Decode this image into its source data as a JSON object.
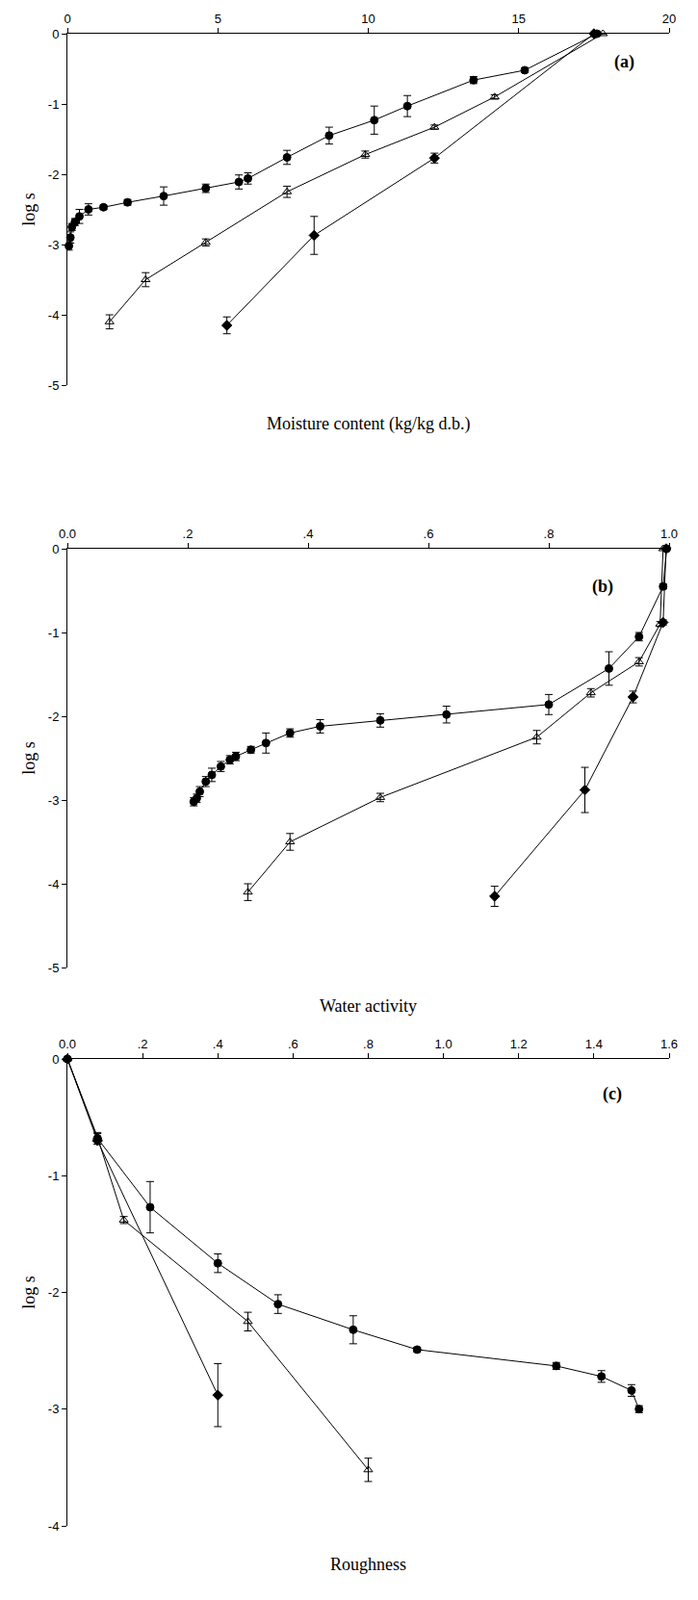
{
  "chart_data": [
    {
      "type": "line",
      "panel": "(a)",
      "xlabel": "Moisture content (kg/kg d.b.)",
      "ylabel": "log s",
      "xlim": [
        0,
        20
      ],
      "xticks": [
        0,
        5,
        10,
        15,
        20
      ],
      "ylim": [
        -5,
        0
      ],
      "yticks": [
        0,
        -1,
        -2,
        -3,
        -4,
        -5
      ],
      "series": [
        {
          "color": "#000000",
          "marker": "circle",
          "x": [
            17.6,
            15.2,
            13.5,
            11.3,
            10.2,
            8.7,
            7.3,
            6.0,
            5.7,
            4.6,
            3.2,
            2.0,
            1.2,
            0.7,
            0.4,
            0.25,
            0.15,
            0.1,
            0.05
          ],
          "values": [
            0,
            -0.52,
            -0.66,
            -1.03,
            -1.23,
            -1.45,
            -1.76,
            -2.06,
            -2.11,
            -2.2,
            -2.31,
            -2.4,
            -2.47,
            -2.5,
            -2.6,
            -2.68,
            -2.75,
            -2.9,
            -3.02
          ],
          "error": [
            0,
            0.03,
            0.05,
            0.15,
            0.2,
            0.12,
            0.1,
            0.08,
            0.1,
            0.06,
            0.13,
            0.04,
            0.03,
            0.08,
            0.1,
            0.05,
            0.05,
            0.08,
            0.06
          ]
        },
        {
          "color": "#000000",
          "marker": "triangle-open",
          "x": [
            17.8,
            14.2,
            12.2,
            9.9,
            7.3,
            4.6,
            2.6,
            1.4
          ],
          "values": [
            0,
            -0.9,
            -1.33,
            -1.72,
            -2.25,
            -2.97,
            -3.5,
            -4.1
          ],
          "error": [
            0,
            0.03,
            0.03,
            0.05,
            0.08,
            0.05,
            0.1,
            0.1
          ]
        },
        {
          "color": "#000000",
          "marker": "diamond",
          "x": [
            17.5,
            12.2,
            8.2,
            5.3
          ],
          "values": [
            0,
            -1.77,
            -2.87,
            -4.15
          ],
          "error": [
            0,
            0.07,
            0.27,
            0.12
          ]
        }
      ]
    },
    {
      "type": "line",
      "panel": "(b)",
      "xlabel": "Water activity",
      "ylabel": "log s",
      "xlim": [
        0,
        1
      ],
      "xticks": [
        {
          "value": 0,
          "label": "0.0"
        },
        {
          "value": 0.2,
          "label": ".2"
        },
        {
          "value": 0.4,
          "label": ".4"
        },
        {
          "value": 0.6,
          "label": ".6"
        },
        {
          "value": 0.8,
          "label": ".8"
        },
        {
          "value": 1,
          "label": "1.0"
        }
      ],
      "ylim": [
        -5,
        0
      ],
      "yticks": [
        0,
        -1,
        -2,
        -3,
        -4,
        -5
      ],
      "series": [
        {
          "color": "#000000",
          "marker": "circle",
          "x": [
            0.996,
            0.99,
            0.95,
            0.9,
            0.8,
            0.63,
            0.52,
            0.42,
            0.37,
            0.33,
            0.305,
            0.28,
            0.27,
            0.255,
            0.24,
            0.23,
            0.22,
            0.215,
            0.21
          ],
          "values": [
            0,
            -0.45,
            -1.05,
            -1.43,
            -1.86,
            -1.98,
            -2.05,
            -2.12,
            -2.2,
            -2.32,
            -2.4,
            -2.48,
            -2.52,
            -2.6,
            -2.7,
            -2.78,
            -2.9,
            -2.98,
            -3.02
          ],
          "error": [
            0,
            0.03,
            0.05,
            0.2,
            0.12,
            0.1,
            0.08,
            0.08,
            0.05,
            0.12,
            0.04,
            0.05,
            0.05,
            0.06,
            0.08,
            0.06,
            0.06,
            0.05,
            0.05
          ]
        },
        {
          "color": "#000000",
          "marker": "triangle-open",
          "x": [
            0.99,
            0.985,
            0.95,
            0.87,
            0.78,
            0.52,
            0.37,
            0.3
          ],
          "values": [
            0,
            -0.9,
            -1.35,
            -1.72,
            -2.25,
            -2.97,
            -3.5,
            -4.1
          ],
          "error": [
            0,
            0.03,
            0.05,
            0.05,
            0.08,
            0.05,
            0.1,
            0.1
          ]
        },
        {
          "color": "#000000",
          "marker": "diamond",
          "x": [
            0.995,
            0.99,
            0.94,
            0.86,
            0.71
          ],
          "values": [
            0,
            -0.88,
            -1.77,
            -2.88,
            -4.15
          ],
          "error": [
            0,
            0.03,
            0.07,
            0.27,
            0.12
          ]
        }
      ]
    },
    {
      "type": "line",
      "panel": "(c)",
      "xlabel": "Roughness",
      "ylabel": "log s",
      "xlim": [
        0,
        1.6
      ],
      "xticks": [
        {
          "value": 0,
          "label": "0.0"
        },
        {
          "value": 0.2,
          "label": ".2"
        },
        {
          "value": 0.4,
          "label": ".4"
        },
        {
          "value": 0.6,
          "label": ".6"
        },
        {
          "value": 0.8,
          "label": ".8"
        },
        {
          "value": 1,
          "label": "1.0"
        },
        {
          "value": 1.2,
          "label": "1.2"
        },
        {
          "value": 1.4,
          "label": "1.4"
        },
        {
          "value": 1.6,
          "label": "1.6"
        }
      ],
      "ylim": [
        -4,
        0
      ],
      "yticks": [
        0,
        -1,
        -2,
        -3,
        -4
      ],
      "series": [
        {
          "color": "#000000",
          "marker": "circle",
          "x": [
            0,
            0.08,
            0.22,
            0.4,
            0.56,
            0.76,
            0.93,
            1.3,
            1.42,
            1.5,
            1.52
          ],
          "values": [
            0,
            -0.68,
            -1.27,
            -1.75,
            -2.1,
            -2.32,
            -2.49,
            -2.63,
            -2.72,
            -2.84,
            -3.0
          ],
          "error": [
            0,
            0.05,
            0.22,
            0.08,
            0.08,
            0.12,
            0.02,
            0.03,
            0.05,
            0.05,
            0.03
          ]
        },
        {
          "color": "#000000",
          "marker": "triangle-open",
          "x": [
            0,
            0.08,
            0.15,
            0.48,
            0.8
          ],
          "values": [
            0,
            -0.67,
            -1.38,
            -2.25,
            -3.52
          ],
          "error": [
            0,
            0.03,
            0.03,
            0.08,
            0.1
          ]
        },
        {
          "color": "#000000",
          "marker": "diamond",
          "x": [
            0,
            0.08,
            0.4
          ],
          "values": [
            0,
            -0.7,
            -2.88
          ],
          "error": [
            0,
            0.03,
            0.27
          ]
        }
      ]
    }
  ]
}
